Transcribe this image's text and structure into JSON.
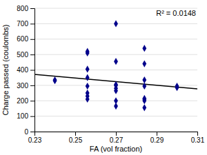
{
  "chart_data": {
    "type": "scatter",
    "x": [
      0.24,
      0.24,
      0.256,
      0.256,
      0.256,
      0.256,
      0.256,
      0.256,
      0.256,
      0.256,
      0.27,
      0.27,
      0.27,
      0.27,
      0.27,
      0.27,
      0.27,
      0.27,
      0.284,
      0.284,
      0.284,
      0.284,
      0.284,
      0.284,
      0.284,
      0.284,
      0.3,
      0.3
    ],
    "values": [
      335,
      330,
      520,
      510,
      405,
      350,
      295,
      250,
      230,
      210,
      700,
      455,
      305,
      300,
      280,
      265,
      200,
      165,
      540,
      440,
      335,
      295,
      215,
      210,
      200,
      155,
      295,
      285
    ],
    "color": "#00008B",
    "marker": "diamond",
    "trendline": {
      "type": "line",
      "x": [
        0.23,
        0.31
      ],
      "values": [
        370.84,
        277.37
      ],
      "color": "#000000",
      "line_style": "solid"
    },
    "annotation": "R² = 0.0148",
    "xlabel": "FA (vol fraction)",
    "ylabel": "Charge passed (coulombs)",
    "xlim": [
      0.23,
      0.31
    ],
    "ylim": [
      0,
      800
    ],
    "xticks": [
      0.23,
      0.25,
      0.27,
      0.29,
      0.31
    ],
    "yticks": [
      0,
      100,
      200,
      300,
      400,
      500,
      600,
      700,
      800
    ],
    "grid": "y"
  }
}
